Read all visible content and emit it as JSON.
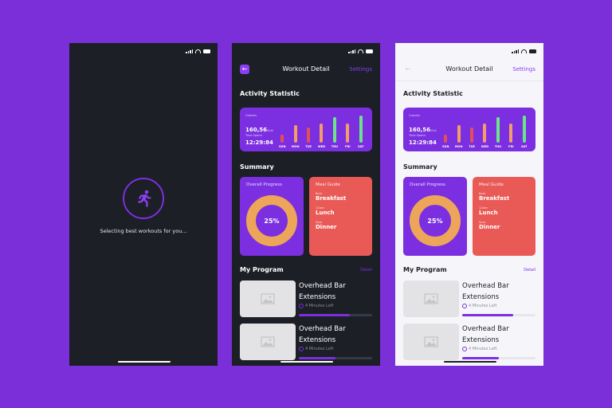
{
  "colors": {
    "background": "#7a2fd9",
    "accent": "#7b2fe0",
    "meal_card": "#e95a57",
    "donut": "#eda659",
    "green": "#6ce58a",
    "orange": "#f59c6b",
    "red": "#e24f5c"
  },
  "loading": {
    "icon": "running-person-icon",
    "text": "Selecting best workouts for you..."
  },
  "header": {
    "title": "Workout Detail",
    "settings": "Settings",
    "back_icon": "arrow-left-icon"
  },
  "activity": {
    "title": "Activity Statistic",
    "calories_label": "Calories",
    "calories": "160,56",
    "calories_unit": "kCal",
    "time_label": "Time Spend",
    "time": "12:29:84"
  },
  "chart_data": {
    "type": "bar",
    "categories": [
      "SUN",
      "MON",
      "TUE",
      "WED",
      "THU",
      "FRI",
      "SAT"
    ],
    "values": [
      0.3,
      0.65,
      0.55,
      0.7,
      0.95,
      0.72,
      1.0
    ],
    "colors": [
      "#e24f5c",
      "#f59c6b",
      "#e24f5c",
      "#f59c6b",
      "#6ce58a",
      "#f59c6b",
      "#6ce58a"
    ]
  },
  "summary": {
    "title": "Summary",
    "progress_title": "Overall Progress",
    "progress": "25%",
    "progress_value": 25,
    "meal_title": "Meal Guide",
    "meals": [
      {
        "time": "8am",
        "name": "Breakfast"
      },
      {
        "time": "12am",
        "name": "Lunch"
      },
      {
        "time": "5pm",
        "name": "Dinner"
      }
    ]
  },
  "program": {
    "title": "My Program",
    "detail": "Detail",
    "items": [
      {
        "name1": "Overhead Bar",
        "name2": "Extensions",
        "time": "4 Minutes Left",
        "progress": 0.7
      },
      {
        "name1": "Overhead Bar",
        "name2": "Extensions",
        "time": "4 Minutes Left",
        "progress": 0.5
      }
    ]
  }
}
